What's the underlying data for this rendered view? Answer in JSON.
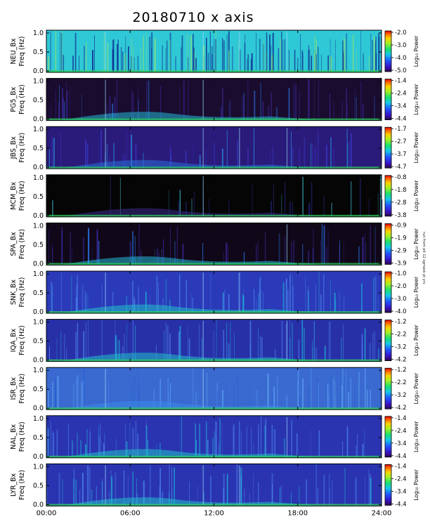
{
  "title": "20180710 x axis",
  "stamp": "run from plt 12 sgmask pt yrs",
  "chart_data": {
    "type": "heatmap",
    "title": "20180710 x axis",
    "x_ticks": [
      "00:00",
      "06:00",
      "12:00",
      "18:00",
      "24:00"
    ],
    "x_range_hours": [
      0,
      24
    ],
    "y_range_hz": [
      0,
      1.0
    ],
    "y_ticks": [
      "0.0",
      "0.5",
      "1.0"
    ],
    "colorbar_label": "Log₁₀ Power",
    "panels": [
      {
        "station": "NEU",
        "component": "Bx",
        "ylabel_line1": "NEU_Bx",
        "ylabel_line2": "Freq (Hz)",
        "cbar_ticks": [
          "-2.0",
          "-3.0",
          "-4.0",
          "-5.0"
        ],
        "cbar_range": [
          -5.0,
          -2.0
        ],
        "background": "#2fc8d6",
        "style": "dense"
      },
      {
        "station": "PG5",
        "component": "Bx",
        "ylabel_line1": "PG5_Bx",
        "ylabel_line2": "Freq (Hz)",
        "cbar_ticks": [
          "-1.4",
          "-2.4",
          "-3.4",
          "-4.4"
        ],
        "cbar_range": [
          -4.4,
          -1.4
        ],
        "background": "#1a0c2e",
        "style": "dark"
      },
      {
        "station": "JBS",
        "component": "Bx",
        "ylabel_line1": "JBS_Bx",
        "ylabel_line2": "Freq (Hz)",
        "cbar_ticks": [
          "-1.7",
          "-2.7",
          "-3.7",
          "-4.7"
        ],
        "cbar_range": [
          -4.7,
          -1.7
        ],
        "background": "#2a1a7a",
        "style": "medium"
      },
      {
        "station": "MCM",
        "component": "Bx",
        "ylabel_line1": "MCM_Bx",
        "ylabel_line2": "Freq (Hz)",
        "cbar_ticks": [
          "-0.8",
          "-1.8",
          "-2.8",
          "-3.8"
        ],
        "cbar_range": [
          -3.8,
          -0.8
        ],
        "background": "#050505",
        "style": "black"
      },
      {
        "station": "SPA",
        "component": "Bx",
        "ylabel_line1": "SPA_Bx",
        "ylabel_line2": "Freq (Hz)",
        "cbar_ticks": [
          "-0.9",
          "-1.9",
          "-2.9",
          "-3.9"
        ],
        "cbar_range": [
          -3.9,
          -0.9
        ],
        "background": "#100818",
        "style": "dark"
      },
      {
        "station": "SNK",
        "component": "Bx",
        "ylabel_line1": "SNK_Bx",
        "ylabel_line2": "Freq (Hz)",
        "cbar_ticks": [
          "-1.0",
          "-2.0",
          "-3.0",
          "-4.0"
        ],
        "cbar_range": [
          -4.0,
          -1.0
        ],
        "background": "#2a3ab8",
        "style": "blue"
      },
      {
        "station": "IQA",
        "component": "Bx",
        "ylabel_line1": "IQA_Bx",
        "ylabel_line2": "Freq (Hz)",
        "cbar_ticks": [
          "-1.2",
          "-2.2",
          "-3.2",
          "-4.2"
        ],
        "cbar_range": [
          -4.2,
          -1.2
        ],
        "background": "#2830a8",
        "style": "blue"
      },
      {
        "station": "ISR",
        "component": "Bx",
        "ylabel_line1": "ISR_Bx",
        "ylabel_line2": "Freq (Hz)",
        "cbar_ticks": [
          "-1.2",
          "-2.2",
          "-3.2",
          "-4.2"
        ],
        "cbar_range": [
          -4.2,
          -1.2
        ],
        "background": "#3a6ad0",
        "style": "light"
      },
      {
        "station": "NAL",
        "component": "Bx",
        "ylabel_line1": "NAL_Bx",
        "ylabel_line2": "Freq (Hz)",
        "cbar_ticks": [
          "-1.4",
          "-2.4",
          "-3.4",
          "-4.4"
        ],
        "cbar_range": [
          -4.4,
          -1.4
        ],
        "background": "#2a34b0",
        "style": "blue"
      },
      {
        "station": "LYR",
        "component": "Bx",
        "ylabel_line1": "LYR_Bx",
        "ylabel_line2": "Freq (Hz)",
        "cbar_ticks": [
          "-1.4",
          "-2.4",
          "-3.4",
          "-4.4"
        ],
        "cbar_range": [
          -4.4,
          -1.4
        ],
        "background": "#2a34b0",
        "style": "blue"
      }
    ]
  }
}
